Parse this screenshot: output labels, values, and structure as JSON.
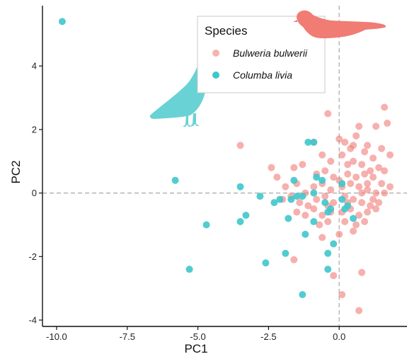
{
  "chart_data": {
    "type": "scatter",
    "xlabel": "PC1",
    "ylabel": "PC2",
    "xlim": [
      -10.5,
      2.4
    ],
    "ylim": [
      -4.2,
      5.9
    ],
    "x_ticks": [
      -10.0,
      -7.5,
      -5.0,
      -2.5,
      0.0
    ],
    "x_tick_labels": [
      "-10.0",
      "-7.5",
      "-5.0",
      "-2.5",
      "0.0"
    ],
    "y_ticks": [
      -4,
      -2,
      0,
      2,
      4
    ],
    "y_tick_labels": [
      "-4",
      "-2",
      "0",
      "2",
      "4"
    ],
    "grid": false,
    "reference_lines": {
      "x": 0,
      "y": 0,
      "style": "dashed"
    },
    "legend": {
      "title": "Species",
      "placement": "top-center",
      "entries": [
        {
          "label": "Bulweria bulwerii",
          "color": "#F0807A"
        },
        {
          "label": "Columba livia",
          "color": "#3EC6CC"
        }
      ]
    },
    "silhouettes": [
      {
        "icon": "petrel-silhouette-icon",
        "species": "Bulweria bulwerii",
        "color": "#F0807A"
      },
      {
        "icon": "pigeon-silhouette-icon",
        "species": "Columba livia",
        "color": "#3EC6CC"
      }
    ],
    "series": [
      {
        "name": "Bulweria bulwerii",
        "color": "#F0807A",
        "points": [
          [
            -3.5,
            1.5
          ],
          [
            -0.4,
            2.5
          ],
          [
            -2.4,
            0.8
          ],
          [
            -1.6,
            0.8
          ],
          [
            -1.3,
            0.9
          ],
          [
            -0.6,
            1.2
          ],
          [
            -0.9,
            1.6
          ],
          [
            0,
            1.7
          ],
          [
            0.6,
            1.8
          ],
          [
            1,
            1.5
          ],
          [
            1.3,
            2.1
          ],
          [
            1.6,
            2.7
          ],
          [
            1.7,
            2.2
          ],
          [
            0.7,
            2.1
          ],
          [
            0.2,
            1.6
          ],
          [
            0.4,
            1.4
          ],
          [
            0.9,
            1.3
          ],
          [
            1.2,
            1.1
          ],
          [
            1.5,
            1.4
          ],
          [
            1.8,
            1.2
          ],
          [
            -0.3,
            1
          ],
          [
            0.1,
            1.2
          ],
          [
            0.5,
            1
          ],
          [
            0.8,
            0.9
          ],
          [
            1.1,
            0.7
          ],
          [
            1.4,
            0.8
          ],
          [
            1.6,
            0.7
          ],
          [
            -0.8,
            0.6
          ],
          [
            -0.5,
            0.7
          ],
          [
            -0.2,
            0.5
          ],
          [
            0.3,
            0.6
          ],
          [
            0.6,
            0.5
          ],
          [
            0.9,
            0.6
          ],
          [
            1.2,
            0.5
          ],
          [
            1.5,
            0.3
          ],
          [
            1.8,
            0.2
          ],
          [
            -2.2,
            0.5
          ],
          [
            -1.9,
            0.2
          ],
          [
            -1.5,
            0.3
          ],
          [
            -1.2,
            0
          ],
          [
            -0.9,
            0.2
          ],
          [
            -0.6,
            0.3
          ],
          [
            -0.3,
            0.1
          ],
          [
            0.1,
            0.2
          ],
          [
            0.4,
            0.3
          ],
          [
            0.7,
            0.2
          ],
          [
            1,
            0.1
          ],
          [
            1.3,
            0
          ],
          [
            1.6,
            0
          ],
          [
            -2,
            -0.2
          ],
          [
            -1.7,
            -0.1
          ],
          [
            -1.4,
            -0.3
          ],
          [
            -1.1,
            -0.4
          ],
          [
            -0.8,
            -0.2
          ],
          [
            -0.5,
            -0.1
          ],
          [
            -0.2,
            -0.3
          ],
          [
            0.2,
            -0.1
          ],
          [
            0.5,
            -0.2
          ],
          [
            0.8,
            -0.3
          ],
          [
            1.1,
            -0.4
          ],
          [
            1.4,
            -0.3
          ],
          [
            -1.5,
            -0.6
          ],
          [
            -1.2,
            -0.7
          ],
          [
            -0.9,
            -0.5
          ],
          [
            -0.6,
            -0.7
          ],
          [
            -0.3,
            -0.6
          ],
          [
            0.1,
            -0.6
          ],
          [
            0.4,
            -0.5
          ],
          [
            0.7,
            -0.7
          ],
          [
            1,
            -0.6
          ],
          [
            1.3,
            -0.5
          ],
          [
            -0.7,
            -1
          ],
          [
            -0.4,
            -0.9
          ],
          [
            0.2,
            -0.9
          ],
          [
            0.6,
            -1
          ],
          [
            0.9,
            -0.9
          ],
          [
            -0.6,
            -1.4
          ],
          [
            0,
            -1.3
          ],
          [
            0.5,
            -1.2
          ],
          [
            -1.6,
            -2.1
          ],
          [
            -0.2,
            -2.6
          ],
          [
            0.8,
            -2.5
          ],
          [
            0.1,
            -3.2
          ],
          [
            0.7,
            -3.7
          ],
          [
            0.5,
            1.5
          ],
          [
            0.3,
            0.9
          ],
          [
            0,
            0.4
          ],
          [
            0.8,
            0
          ],
          [
            -0.4,
            -0.4
          ],
          [
            1.2,
            -0.2
          ],
          [
            0.3,
            -0.3
          ],
          [
            1,
            0.3
          ]
        ]
      },
      {
        "name": "Columba livia",
        "color": "#3EC6CC",
        "points": [
          [
            -9.8,
            5.4
          ],
          [
            -5.8,
            0.4
          ],
          [
            -4.7,
            -1
          ],
          [
            -5.3,
            -2.4
          ],
          [
            -3.5,
            -0.9
          ],
          [
            -3.3,
            -0.7
          ],
          [
            -3.5,
            0.2
          ],
          [
            -2.6,
            -2.2
          ],
          [
            -2.8,
            -0.1
          ],
          [
            -2.3,
            -0.3
          ],
          [
            -2.1,
            -0.2
          ],
          [
            -1.9,
            -1.9
          ],
          [
            -1.7,
            -0.2
          ],
          [
            -1.5,
            -0.1
          ],
          [
            -1.6,
            0.4
          ],
          [
            -1.8,
            -0.8
          ],
          [
            -1.3,
            -0.1
          ],
          [
            -1.1,
            1.6
          ],
          [
            -0.9,
            1.6
          ],
          [
            -0.8,
            0.5
          ],
          [
            -0.6,
            0.4
          ],
          [
            -0.5,
            -0.3
          ],
          [
            -0.4,
            -0.6
          ],
          [
            -0.3,
            -0.5
          ],
          [
            -1.2,
            -1.3
          ],
          [
            -0.9,
            -0.9
          ],
          [
            -0.4,
            -1.9
          ],
          [
            -0.4,
            -2.4
          ],
          [
            -1.3,
            -3.2
          ],
          [
            -0.2,
            -1.6
          ],
          [
            0.1,
            0.3
          ],
          [
            0.3,
            -0.4
          ],
          [
            0.5,
            -0.8
          ],
          [
            0.2,
            -0.5
          ],
          [
            -0.9,
            0
          ],
          [
            0.1,
            -0.2
          ]
        ]
      }
    ]
  }
}
